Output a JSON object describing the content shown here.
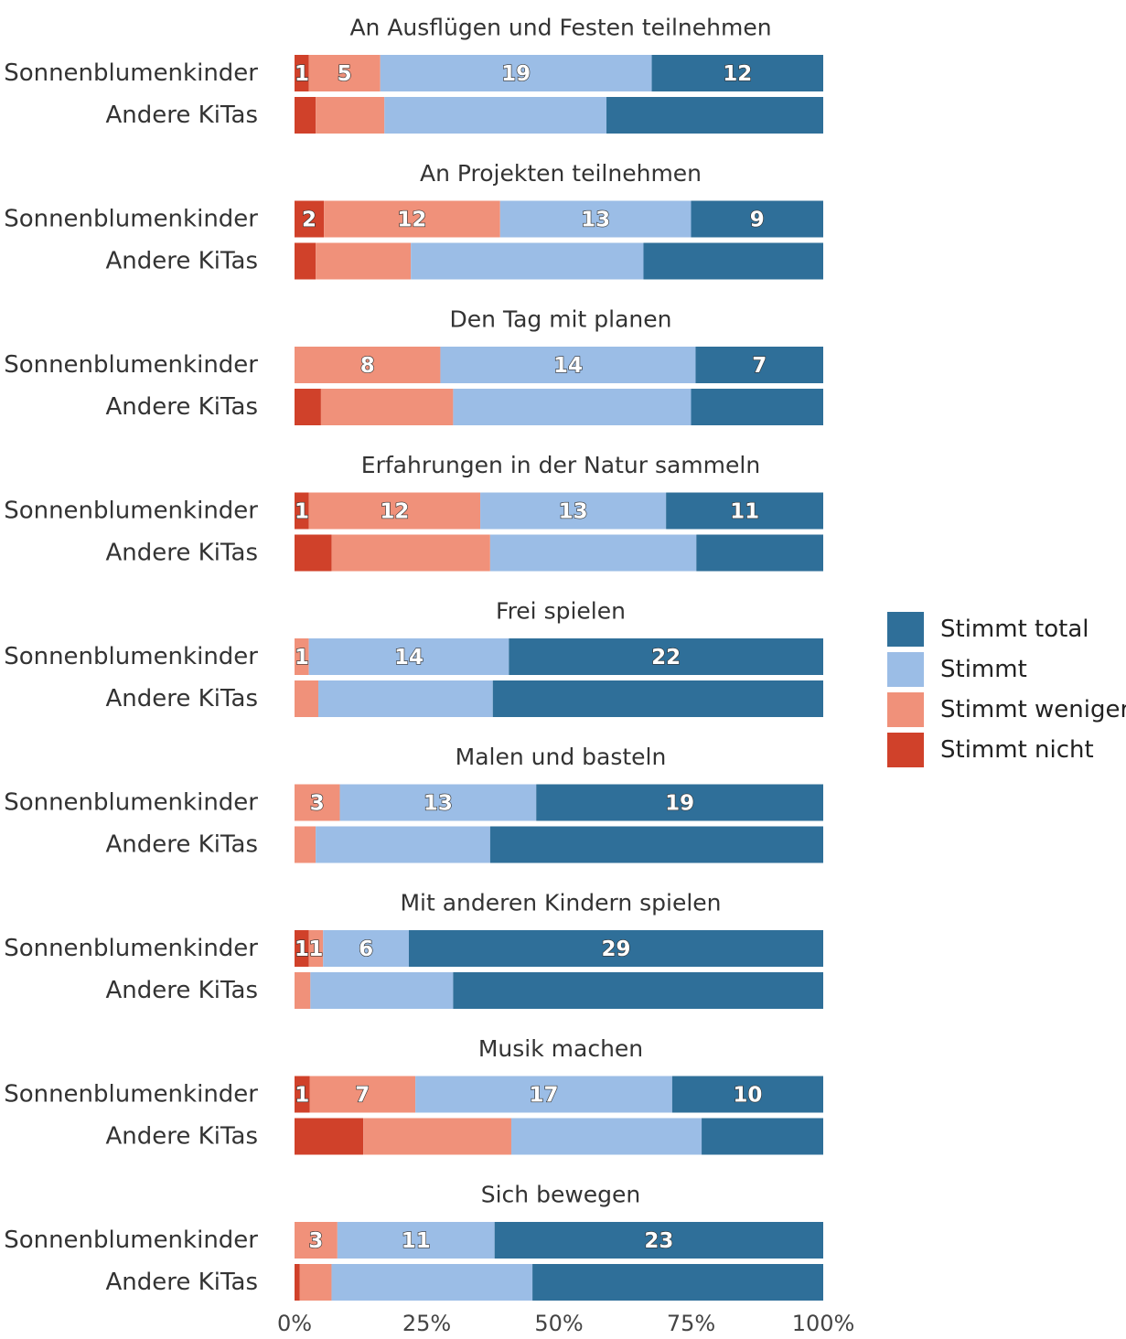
{
  "chart_data": {
    "type": "bar",
    "orientation": "horizontal",
    "stacked": "percent",
    "categories": [
      "An Ausflügen und Festen teilnehmen",
      "An Projekten teilnehmen",
      "Den Tag mit planen",
      "Erfahrungen in der Natur sammeln",
      "Frei spielen",
      "Malen und basteln",
      "Mit anderen Kindern spielen",
      "Musik machen",
      "Sich bewegen"
    ],
    "row_labels": [
      "Sonnenblumenkinder",
      "Andere KiTas"
    ],
    "series_names": [
      "Stimmt nicht",
      "Stimmt weniger",
      "Stimmt",
      "Stimmt total"
    ],
    "colors": {
      "Stimmt nicht": "#d0412a",
      "Stimmt weniger": "#f0917a",
      "Stimmt": "#9bbde6",
      "Stimmt total": "#2f6f99"
    },
    "sonnenblumenkinder_counts": [
      [
        1,
        5,
        19,
        12
      ],
      [
        2,
        12,
        13,
        9
      ],
      [
        0,
        8,
        14,
        7
      ],
      [
        1,
        12,
        13,
        11
      ],
      [
        0,
        1,
        14,
        22
      ],
      [
        0,
        3,
        13,
        19
      ],
      [
        1,
        1,
        6,
        29
      ],
      [
        1,
        7,
        17,
        10
      ],
      [
        0,
        3,
        11,
        23
      ]
    ],
    "sonnenblumenkinder_count_labels": [
      [
        "1",
        "5",
        "19",
        "12"
      ],
      [
        "2",
        "12",
        "13",
        "9"
      ],
      [
        "",
        "8",
        "14",
        "7"
      ],
      [
        "1",
        "12",
        "13",
        "11"
      ],
      [
        "",
        "1",
        "14",
        "22"
      ],
      [
        "",
        "3",
        "13",
        "19"
      ],
      [
        "1",
        "1",
        "6",
        "29"
      ],
      [
        "1",
        "7",
        "17",
        "10"
      ],
      [
        "",
        "3",
        "11",
        "23"
      ]
    ],
    "andere_kitas_percent": [
      [
        4,
        13,
        42,
        41
      ],
      [
        4,
        18,
        44,
        34
      ],
      [
        5,
        25,
        45,
        25
      ],
      [
        7,
        30,
        39,
        24
      ],
      [
        0,
        4.5,
        33,
        62.5
      ],
      [
        0,
        4,
        33,
        63
      ],
      [
        0,
        3,
        27,
        70
      ],
      [
        13,
        28,
        36,
        23
      ],
      [
        1,
        6,
        38,
        55
      ]
    ],
    "x_ticks": [
      "0%",
      "25%",
      "50%",
      "75%",
      "100%"
    ],
    "xlim": [
      0,
      100
    ],
    "legend": [
      "Stimmt total",
      "Stimmt",
      "Stimmt weniger",
      "Stimmt nicht"
    ],
    "legend_position": "right",
    "grid": false
  }
}
